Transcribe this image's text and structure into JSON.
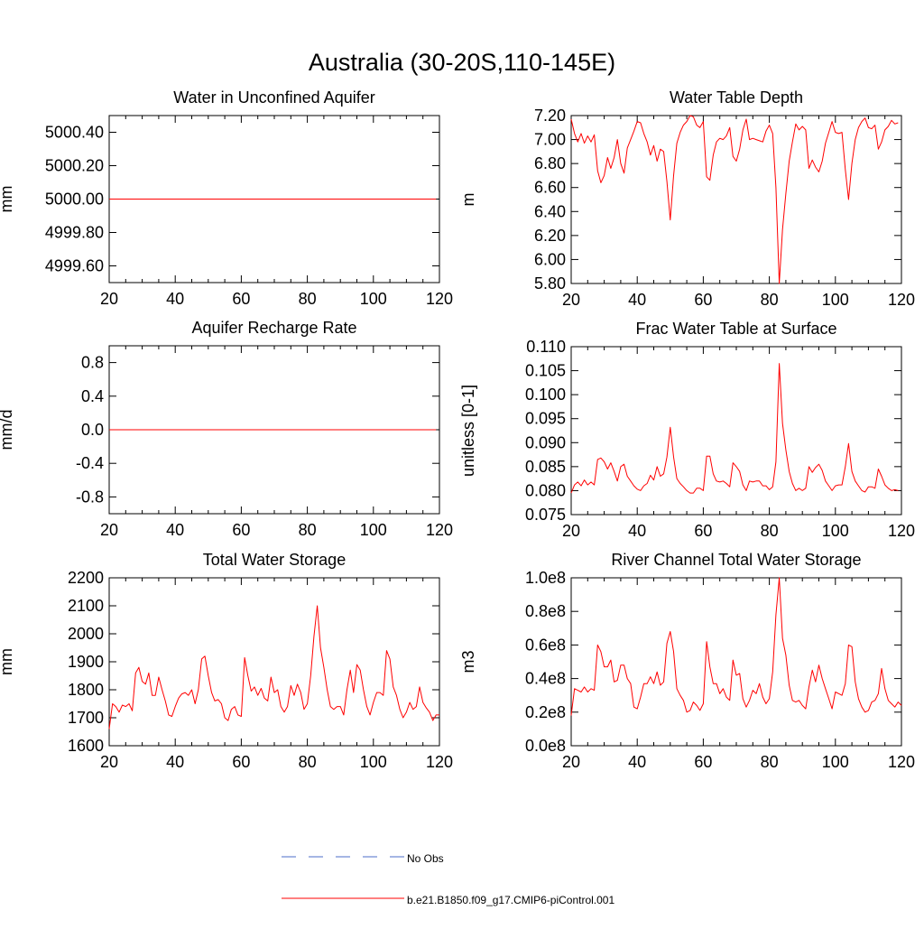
{
  "figure": {
    "title": "Australia (30-20S,110-145E)"
  },
  "legend": {
    "position": "bottom-center",
    "items": [
      {
        "label": "No Obs",
        "color": "#4b6ec8",
        "dash": "dashed"
      },
      {
        "label": "b.e21.B1850.f09_g17.CMIP6-piControl.001",
        "color": "#ff0000",
        "dash": "solid"
      }
    ]
  },
  "chart_data": [
    {
      "type": "line",
      "title": "Water in Unconfined Aquifer",
      "ylabel": "mm",
      "xlim": [
        20,
        120
      ],
      "ylim": [
        4999.5,
        5000.5
      ],
      "xticks": [
        20,
        40,
        60,
        80,
        100,
        120
      ],
      "yticks": [
        4999.6,
        4999.8,
        5000.0,
        5000.2,
        5000.4
      ],
      "ytick_labels": [
        "4999.60",
        "4999.80",
        "5000.00",
        "5000.20",
        "5000.40"
      ],
      "x_start": 20,
      "series": [
        {
          "values": [
            5000.0,
            5000.0
          ]
        }
      ],
      "series_x": [
        20,
        119
      ]
    },
    {
      "type": "line",
      "title": "Water Table Depth",
      "ylabel": "m",
      "xlim": [
        20,
        120
      ],
      "ylim": [
        5.8,
        7.2
      ],
      "xticks": [
        20,
        40,
        60,
        80,
        100,
        120
      ],
      "yticks": [
        5.8,
        6.0,
        6.2,
        6.4,
        6.6,
        6.8,
        7.0,
        7.2
      ],
      "ytick_labels": [
        "5.80",
        "6.00",
        "6.20",
        "6.40",
        "6.60",
        "6.80",
        "7.00",
        "7.20"
      ],
      "x_start": 20,
      "series": [
        {
          "values": [
            7.17,
            7.05,
            6.98,
            7.05,
            6.97,
            7.03,
            6.98,
            7.04,
            6.74,
            6.64,
            6.7,
            6.85,
            6.76,
            6.85,
            7.0,
            6.8,
            6.72,
            6.93,
            7.0,
            7.07,
            7.15,
            7.14,
            7.05,
            6.98,
            6.87,
            6.95,
            6.82,
            6.92,
            6.9,
            6.65,
            6.33,
            6.7,
            6.97,
            7.06,
            7.12,
            7.15,
            7.2,
            7.19,
            7.12,
            7.1,
            7.15,
            6.69,
            6.66,
            6.87,
            6.98,
            7.01,
            7.0,
            7.03,
            7.1,
            6.86,
            6.82,
            6.92,
            7.08,
            7.17,
            7.0,
            7.01,
            7.0,
            6.99,
            6.98,
            7.07,
            7.12,
            7.05,
            6.6,
            5.8,
            6.25,
            6.55,
            6.82,
            6.98,
            7.13,
            7.08,
            7.11,
            7.08,
            6.76,
            6.83,
            6.77,
            6.73,
            6.82,
            6.97,
            7.06,
            7.15,
            7.06,
            7.05,
            7.06,
            6.75,
            6.5,
            6.8,
            7.0,
            7.1,
            7.15,
            7.18,
            7.1,
            7.09,
            7.12,
            6.92,
            6.98,
            7.08,
            7.11,
            7.16,
            7.13,
            7.14
          ]
        }
      ]
    },
    {
      "type": "line",
      "title": "Aquifer Recharge Rate",
      "ylabel": "mm/d",
      "xlim": [
        20,
        120
      ],
      "ylim": [
        -1.0,
        1.0
      ],
      "xticks": [
        20,
        40,
        60,
        80,
        100,
        120
      ],
      "yticks": [
        -0.8,
        -0.4,
        0.0,
        0.4,
        0.8
      ],
      "ytick_labels": [
        "-0.8",
        "-0.4",
        "0.0",
        "0.4",
        "0.8"
      ],
      "x_start": 20,
      "series": [
        {
          "values": [
            0.0,
            0.0
          ]
        }
      ],
      "series_x": [
        20,
        119
      ]
    },
    {
      "type": "line",
      "title": "Frac Water Table at Surface",
      "ylabel": "unitless [0-1]",
      "xlim": [
        20,
        120
      ],
      "ylim": [
        0.075,
        0.11
      ],
      "xticks": [
        20,
        40,
        60,
        80,
        100,
        120
      ],
      "yticks": [
        0.075,
        0.08,
        0.085,
        0.09,
        0.095,
        0.1,
        0.105,
        0.11
      ],
      "ytick_labels": [
        "0.075",
        "0.080",
        "0.085",
        "0.090",
        "0.095",
        "0.100",
        "0.105",
        "0.110"
      ],
      "x_start": 20,
      "series": [
        {
          "values": [
            0.0795,
            0.0812,
            0.0818,
            0.081,
            0.0822,
            0.0812,
            0.0818,
            0.0812,
            0.0865,
            0.0868,
            0.086,
            0.0845,
            0.0858,
            0.084,
            0.082,
            0.085,
            0.0855,
            0.083,
            0.082,
            0.081,
            0.0803,
            0.08,
            0.081,
            0.0815,
            0.0832,
            0.0822,
            0.085,
            0.083,
            0.0835,
            0.087,
            0.0932,
            0.087,
            0.0825,
            0.0815,
            0.0808,
            0.08,
            0.0795,
            0.0795,
            0.0805,
            0.0805,
            0.08,
            0.0872,
            0.0872,
            0.0835,
            0.082,
            0.0818,
            0.082,
            0.0815,
            0.0808,
            0.0858,
            0.085,
            0.084,
            0.0812,
            0.08,
            0.082,
            0.0818,
            0.082,
            0.082,
            0.081,
            0.081,
            0.0802,
            0.0808,
            0.086,
            0.1065,
            0.094,
            0.0885,
            0.084,
            0.0815,
            0.08,
            0.0805,
            0.08,
            0.0805,
            0.085,
            0.0838,
            0.0848,
            0.0855,
            0.0842,
            0.082,
            0.081,
            0.08,
            0.081,
            0.0812,
            0.0812,
            0.085,
            0.0898,
            0.084,
            0.082,
            0.081,
            0.08,
            0.0797,
            0.0808,
            0.0808,
            0.0805,
            0.0845,
            0.083,
            0.0812,
            0.0805,
            0.08,
            0.0802,
            0.08
          ]
        }
      ]
    },
    {
      "type": "line",
      "title": "Total Water Storage",
      "ylabel": "mm",
      "xlim": [
        20,
        120
      ],
      "ylim": [
        1600,
        2200
      ],
      "xticks": [
        20,
        40,
        60,
        80,
        100,
        120
      ],
      "yticks": [
        1600,
        1700,
        1800,
        1900,
        2000,
        2100,
        2200
      ],
      "ytick_labels": [
        "1600",
        "1700",
        "1800",
        "1900",
        "2000",
        "2100",
        "2200"
      ],
      "x_start": 20,
      "series": [
        {
          "values": [
            1660,
            1750,
            1740,
            1720,
            1745,
            1740,
            1750,
            1725,
            1860,
            1880,
            1830,
            1820,
            1860,
            1780,
            1780,
            1845,
            1800,
            1760,
            1710,
            1705,
            1740,
            1770,
            1785,
            1790,
            1780,
            1800,
            1750,
            1800,
            1910,
            1920,
            1850,
            1790,
            1760,
            1765,
            1750,
            1700,
            1690,
            1730,
            1740,
            1710,
            1705,
            1915,
            1850,
            1795,
            1810,
            1780,
            1805,
            1770,
            1760,
            1845,
            1790,
            1800,
            1740,
            1720,
            1740,
            1815,
            1780,
            1820,
            1790,
            1730,
            1750,
            1850,
            1990,
            2100,
            1950,
            1880,
            1800,
            1740,
            1730,
            1740,
            1740,
            1710,
            1800,
            1870,
            1790,
            1890,
            1870,
            1800,
            1740,
            1710,
            1755,
            1790,
            1790,
            1780,
            1940,
            1910,
            1810,
            1780,
            1730,
            1700,
            1720,
            1755,
            1730,
            1740,
            1810,
            1755,
            1735,
            1720,
            1690,
            1710,
            1710
          ]
        }
      ]
    },
    {
      "type": "line",
      "title": "River Channel Total Water Storage",
      "ylabel": "m3",
      "xlim": [
        20,
        120
      ],
      "ylim": [
        0,
        100000000
      ],
      "xticks": [
        20,
        40,
        60,
        80,
        100,
        120
      ],
      "yticks": [
        0,
        20000000,
        40000000,
        60000000,
        80000000,
        100000000
      ],
      "ytick_labels": [
        "0.0e8",
        "0.2e8",
        "0.4e8",
        "0.6e8",
        "0.8e8",
        "1.0e8"
      ],
      "x_start": 20,
      "series": [
        {
          "values": [
            18000000,
            34000000,
            33000000,
            32000000,
            35000000,
            32000000,
            34000000,
            33000000,
            60000000,
            56000000,
            47000000,
            47000000,
            51000000,
            38000000,
            39000000,
            48000000,
            48000000,
            40000000,
            37000000,
            23000000,
            22000000,
            29000000,
            37000000,
            37000000,
            41000000,
            37000000,
            44000000,
            36000000,
            38000000,
            61000000,
            68000000,
            56000000,
            34000000,
            30000000,
            27000000,
            20000000,
            21000000,
            26000000,
            24000000,
            21000000,
            25000000,
            62000000,
            47000000,
            37000000,
            37000000,
            31000000,
            34000000,
            29000000,
            27000000,
            51000000,
            42000000,
            43000000,
            28000000,
            23000000,
            27000000,
            33000000,
            31000000,
            37000000,
            29000000,
            25000000,
            28000000,
            44000000,
            78000000,
            100000000,
            64000000,
            54000000,
            36000000,
            27000000,
            26000000,
            27000000,
            24000000,
            22000000,
            35000000,
            45000000,
            38000000,
            48000000,
            40000000,
            34000000,
            28000000,
            22000000,
            32000000,
            31000000,
            30000000,
            37000000,
            60000000,
            59000000,
            38000000,
            28000000,
            23000000,
            20000000,
            21000000,
            26000000,
            27000000,
            31000000,
            46000000,
            34000000,
            27000000,
            25000000,
            23000000,
            26000000,
            24000000
          ]
        }
      ]
    }
  ]
}
